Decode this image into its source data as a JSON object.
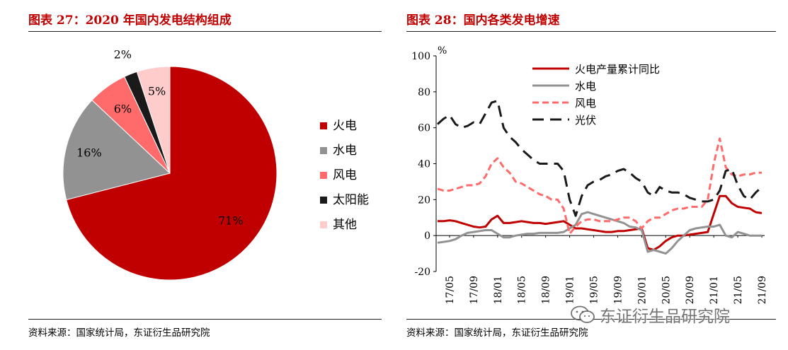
{
  "left_panel": {
    "title": "图表 27：2020 年国内发电结构组成",
    "source": "资料来源：国家统计局，东证衍生品研究院"
  },
  "right_panel": {
    "title": "图表 28：国内各类发电增速",
    "source": "资料来源：国家统计局，东证衍生品研究院"
  },
  "watermark": {
    "text": "东证衍生品研究院",
    "icon": "wechat-icon"
  },
  "colors": {
    "title_red": "#c00000",
    "thermal": "#c00000",
    "hydro": "#929292",
    "wind": "#ff6b6b",
    "solar": "#1a1a1a",
    "other": "#ffcccc"
  },
  "chart_data": [
    {
      "type": "pie",
      "title": "2020 年国内发电结构组成",
      "slices": [
        {
          "name": "火电",
          "value": 71,
          "label": "71%",
          "color": "#c00000"
        },
        {
          "name": "水电",
          "value": 16,
          "label": "16%",
          "color": "#929292"
        },
        {
          "name": "风电",
          "value": 6,
          "label": "6%",
          "color": "#ff6b6b"
        },
        {
          "name": "太阳能",
          "value": 2,
          "label": "2%",
          "color": "#1a1a1a"
        },
        {
          "name": "其他",
          "value": 5,
          "label": "5%",
          "color": "#ffcccc"
        }
      ],
      "legend_position": "right"
    },
    {
      "type": "line",
      "title": "国内各类发电增速",
      "y_unit": "%",
      "ylim": [
        -20,
        100
      ],
      "y_ticks": [
        -20,
        0,
        20,
        40,
        60,
        80,
        100
      ],
      "x_tick_labels": [
        "17/05",
        "17/09",
        "18/01",
        "18/05",
        "18/09",
        "19/01",
        "19/05",
        "19/09",
        "20/01",
        "20/05",
        "20/09",
        "21/01",
        "21/05",
        "21/09"
      ],
      "x_start": "2017-03",
      "x_end": "2021-09",
      "legend_position": "top-right",
      "series": [
        {
          "name": "火电产量累计同比",
          "color": "#c00000",
          "dash": "solid",
          "points": [
            [
              "2017-03",
              8
            ],
            [
              "2017-04",
              8
            ],
            [
              "2017-05",
              8.5
            ],
            [
              "2017-06",
              8
            ],
            [
              "2017-07",
              7
            ],
            [
              "2017-08",
              6
            ],
            [
              "2017-09",
              5
            ],
            [
              "2017-10",
              4.5
            ],
            [
              "2017-11",
              5
            ],
            [
              "2017-12",
              9
            ],
            [
              "2018-01",
              11
            ],
            [
              "2018-02",
              7
            ],
            [
              "2018-03",
              7
            ],
            [
              "2018-04",
              7.5
            ],
            [
              "2018-05",
              8
            ],
            [
              "2018-06",
              7.5
            ],
            [
              "2018-07",
              7
            ],
            [
              "2018-08",
              7
            ],
            [
              "2018-09",
              6.5
            ],
            [
              "2018-10",
              7
            ],
            [
              "2018-11",
              7.5
            ],
            [
              "2018-12",
              8
            ],
            [
              "2019-01",
              6
            ],
            [
              "2019-02",
              4
            ],
            [
              "2019-03",
              4
            ],
            [
              "2019-04",
              3.5
            ],
            [
              "2019-05",
              3
            ],
            [
              "2019-06",
              2.5
            ],
            [
              "2019-07",
              2
            ],
            [
              "2019-08",
              2
            ],
            [
              "2019-09",
              2.5
            ],
            [
              "2019-10",
              2.5
            ],
            [
              "2019-11",
              3
            ],
            [
              "2019-12",
              3.5
            ],
            [
              "2020-01",
              4
            ],
            [
              "2020-02",
              -7
            ],
            [
              "2020-03",
              -8
            ],
            [
              "2020-04",
              -6
            ],
            [
              "2020-05",
              -3
            ],
            [
              "2020-06",
              -1
            ],
            [
              "2020-07",
              0
            ],
            [
              "2020-08",
              0
            ],
            [
              "2020-09",
              0.5
            ],
            [
              "2020-10",
              1
            ],
            [
              "2020-11",
              1.5
            ],
            [
              "2020-12",
              2
            ],
            [
              "2021-01",
              12
            ],
            [
              "2021-02",
              22
            ],
            [
              "2021-03",
              22
            ],
            [
              "2021-04",
              18
            ],
            [
              "2021-05",
              16
            ],
            [
              "2021-06",
              15.5
            ],
            [
              "2021-07",
              15
            ],
            [
              "2021-08",
              13
            ],
            [
              "2021-09",
              12.5
            ]
          ]
        },
        {
          "name": "水电",
          "color": "#929292",
          "dash": "solid",
          "points": [
            [
              "2017-03",
              -4
            ],
            [
              "2017-04",
              -3.5
            ],
            [
              "2017-05",
              -3
            ],
            [
              "2017-06",
              -2
            ],
            [
              "2017-07",
              0
            ],
            [
              "2017-08",
              1.5
            ],
            [
              "2017-09",
              2
            ],
            [
              "2017-10",
              2.5
            ],
            [
              "2017-11",
              3
            ],
            [
              "2017-12",
              3
            ],
            [
              "2018-01",
              1
            ],
            [
              "2018-02",
              -1
            ],
            [
              "2018-03",
              -1
            ],
            [
              "2018-04",
              0
            ],
            [
              "2018-05",
              0.5
            ],
            [
              "2018-06",
              1
            ],
            [
              "2018-07",
              1
            ],
            [
              "2018-08",
              1.5
            ],
            [
              "2018-09",
              1.5
            ],
            [
              "2018-10",
              1.5
            ],
            [
              "2018-11",
              1.5
            ],
            [
              "2018-12",
              2
            ],
            [
              "2019-01",
              4
            ],
            [
              "2019-02",
              6
            ],
            [
              "2019-03",
              12
            ],
            [
              "2019-04",
              13
            ],
            [
              "2019-05",
              12
            ],
            [
              "2019-06",
              11
            ],
            [
              "2019-07",
              10
            ],
            [
              "2019-08",
              9
            ],
            [
              "2019-09",
              8
            ],
            [
              "2019-10",
              7
            ],
            [
              "2019-11",
              5
            ],
            [
              "2019-12",
              4.5
            ],
            [
              "2020-01",
              3
            ],
            [
              "2020-02",
              -9
            ],
            [
              "2020-03",
              -8
            ],
            [
              "2020-04",
              -9
            ],
            [
              "2020-05",
              -10
            ],
            [
              "2020-06",
              -7
            ],
            [
              "2020-07",
              -3
            ],
            [
              "2020-08",
              0
            ],
            [
              "2020-09",
              3
            ],
            [
              "2020-10",
              4
            ],
            [
              "2020-11",
              4.5
            ],
            [
              "2020-12",
              5
            ],
            [
              "2021-01",
              5
            ],
            [
              "2021-02",
              6
            ],
            [
              "2021-03",
              0
            ],
            [
              "2021-04",
              -1
            ],
            [
              "2021-05",
              2
            ],
            [
              "2021-06",
              1
            ],
            [
              "2021-07",
              0
            ],
            [
              "2021-08",
              0
            ],
            [
              "2021-09",
              0
            ]
          ]
        },
        {
          "name": "风电",
          "color": "#ff6b6b",
          "dash": "dashed",
          "points": [
            [
              "2017-03",
              26
            ],
            [
              "2017-04",
              25
            ],
            [
              "2017-05",
              25
            ],
            [
              "2017-06",
              26
            ],
            [
              "2017-07",
              27
            ],
            [
              "2017-08",
              28
            ],
            [
              "2017-09",
              28
            ],
            [
              "2017-10",
              29
            ],
            [
              "2017-11",
              33
            ],
            [
              "2017-12",
              40
            ],
            [
              "2018-01",
              43
            ],
            [
              "2018-02",
              38
            ],
            [
              "2018-03",
              35
            ],
            [
              "2018-04",
              30
            ],
            [
              "2018-05",
              29
            ],
            [
              "2018-06",
              27
            ],
            [
              "2018-07",
              25
            ],
            [
              "2018-08",
              23
            ],
            [
              "2018-09",
              22
            ],
            [
              "2018-10",
              20
            ],
            [
              "2018-11",
              20
            ],
            [
              "2018-12",
              15
            ],
            [
              "2019-01",
              1
            ],
            [
              "2019-02",
              5
            ],
            [
              "2019-03",
              8
            ],
            [
              "2019-04",
              9
            ],
            [
              "2019-05",
              9
            ],
            [
              "2019-06",
              8
            ],
            [
              "2019-07",
              8
            ],
            [
              "2019-08",
              8
            ],
            [
              "2019-09",
              9
            ],
            [
              "2019-10",
              10
            ],
            [
              "2019-11",
              10
            ],
            [
              "2019-12",
              8
            ],
            [
              "2020-01",
              4
            ],
            [
              "2020-02",
              8
            ],
            [
              "2020-03",
              10
            ],
            [
              "2020-04",
              10
            ],
            [
              "2020-05",
              12
            ],
            [
              "2020-06",
              14
            ],
            [
              "2020-07",
              15
            ],
            [
              "2020-08",
              15
            ],
            [
              "2020-09",
              16
            ],
            [
              "2020-10",
              16
            ],
            [
              "2020-11",
              16
            ],
            [
              "2020-12",
              20
            ],
            [
              "2021-01",
              40
            ],
            [
              "2021-02",
              54
            ],
            [
              "2021-03",
              38
            ],
            [
              "2021-04",
              34
            ],
            [
              "2021-05",
              33
            ],
            [
              "2021-06",
              34
            ],
            [
              "2021-07",
              34
            ],
            [
              "2021-08",
              35
            ],
            [
              "2021-09",
              35
            ]
          ]
        },
        {
          "name": "光伏",
          "color": "#1a1a1a",
          "dash": "longdash",
          "points": [
            [
              "2017-03",
              62
            ],
            [
              "2017-04",
              65
            ],
            [
              "2017-05",
              67
            ],
            [
              "2017-06",
              62
            ],
            [
              "2017-07",
              60
            ],
            [
              "2017-08",
              61
            ],
            [
              "2017-09",
              63
            ],
            [
              "2017-10",
              62
            ],
            [
              "2017-11",
              68
            ],
            [
              "2017-12",
              74
            ],
            [
              "2018-01",
              75
            ],
            [
              "2018-02",
              60
            ],
            [
              "2018-03",
              55
            ],
            [
              "2018-04",
              52
            ],
            [
              "2018-05",
              48
            ],
            [
              "2018-06",
              45
            ],
            [
              "2018-07",
              42
            ],
            [
              "2018-08",
              40
            ],
            [
              "2018-09",
              40
            ],
            [
              "2018-10",
              40
            ],
            [
              "2018-11",
              40
            ],
            [
              "2018-12",
              36
            ],
            [
              "2019-01",
              20
            ],
            [
              "2019-02",
              11
            ],
            [
              "2019-03",
              22
            ],
            [
              "2019-04",
              28
            ],
            [
              "2019-05",
              30
            ],
            [
              "2019-06",
              31
            ],
            [
              "2019-07",
              33
            ],
            [
              "2019-08",
              34
            ],
            [
              "2019-09",
              36
            ],
            [
              "2019-10",
              37
            ],
            [
              "2019-11",
              35
            ],
            [
              "2019-12",
              32
            ],
            [
              "2020-01",
              30
            ],
            [
              "2020-02",
              24
            ],
            [
              "2020-03",
              22
            ],
            [
              "2020-04",
              27
            ],
            [
              "2020-05",
              25
            ],
            [
              "2020-06",
              24
            ],
            [
              "2020-07",
              24
            ],
            [
              "2020-08",
              23
            ],
            [
              "2020-09",
              21
            ],
            [
              "2020-10",
              20
            ],
            [
              "2020-11",
              19
            ],
            [
              "2020-12",
              19
            ],
            [
              "2021-01",
              20
            ],
            [
              "2021-02",
              25
            ],
            [
              "2021-03",
              36
            ],
            [
              "2021-04",
              37
            ],
            [
              "2021-05",
              28
            ],
            [
              "2021-06",
              22
            ],
            [
              "2021-07",
              20
            ],
            [
              "2021-08",
              24
            ],
            [
              "2021-09",
              27
            ]
          ]
        }
      ]
    }
  ]
}
